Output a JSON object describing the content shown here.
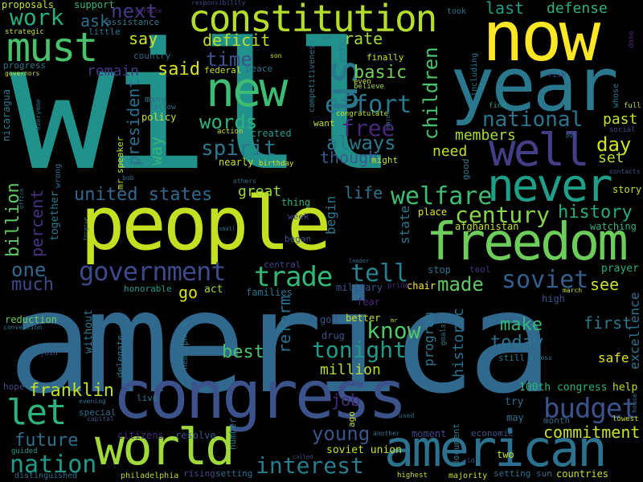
{
  "colors": {
    "background": "#000000",
    "palette": [
      "#440154",
      "#46327e",
      "#365c8d",
      "#277f8e",
      "#1fa187",
      "#4ac16d",
      "#a0da39",
      "#fde725"
    ]
  },
  "words": [
    {
      "text": "will",
      "color": "#21918c"
    },
    {
      "text": "america",
      "color": "#31688e"
    },
    {
      "text": "people",
      "color": "#c5e021"
    },
    {
      "text": "now",
      "color": "#fde725"
    },
    {
      "text": "year",
      "color": "#2a788e"
    },
    {
      "text": "congress",
      "color": "#3b528b"
    },
    {
      "text": "constitution",
      "color": "#b5de2b"
    },
    {
      "text": "freedom",
      "color": "#6ccd5a"
    },
    {
      "text": "world",
      "color": "#a0da39"
    },
    {
      "text": "american",
      "color": "#2c728e"
    },
    {
      "text": "must",
      "color": "#4ac16d"
    },
    {
      "text": "new",
      "color": "#3dbc74"
    },
    {
      "text": "well",
      "color": "#433e85"
    },
    {
      "text": "never",
      "color": "#1f9e89"
    },
    {
      "text": "us",
      "color": "#2a788e"
    },
    {
      "text": "government",
      "color": "#3e4989"
    },
    {
      "text": "let",
      "color": "#2db27d"
    },
    {
      "text": "trade",
      "color": "#35b779"
    },
    {
      "text": "tell",
      "color": "#26828e"
    },
    {
      "text": "soviet",
      "color": "#355f8d"
    },
    {
      "text": "nation",
      "color": "#1f9a8a"
    },
    {
      "text": "interest",
      "color": "#287c8e"
    },
    {
      "text": "budget",
      "color": "#3b528b"
    },
    {
      "text": "welfare",
      "color": "#3fbc73"
    },
    {
      "text": "century",
      "color": "#86d549"
    },
    {
      "text": "history",
      "color": "#23a983"
    },
    {
      "text": "united states",
      "color": "#31688e"
    },
    {
      "text": "effort",
      "color": "#2a788e"
    },
    {
      "text": "free",
      "color": "#482878"
    },
    {
      "text": "national",
      "color": "#2b748e"
    },
    {
      "text": "future",
      "color": "#2d708e"
    },
    {
      "text": "young",
      "color": "#39568c"
    },
    {
      "text": "commitment",
      "color": "#cae11f"
    },
    {
      "text": "tonight",
      "color": "#1f9a8a"
    },
    {
      "text": "know",
      "color": "#54c568"
    },
    {
      "text": "best",
      "color": "#4ac16d"
    },
    {
      "text": "million",
      "color": "#b8de29"
    },
    {
      "text": "made",
      "color": "#5ec962"
    },
    {
      "text": "make",
      "color": "#35b779"
    },
    {
      "text": "first",
      "color": "#2a788e"
    },
    {
      "text": "today",
      "color": "#2c728e"
    },
    {
      "text": "see",
      "color": "#cae11f"
    },
    {
      "text": "franklin",
      "color": "#bddf26"
    },
    {
      "text": "job",
      "color": "#472d7b"
    },
    {
      "text": "go",
      "color": "#d8e219"
    },
    {
      "text": "one",
      "color": "#31688e"
    },
    {
      "text": "much",
      "color": "#3e4989"
    },
    {
      "text": "work",
      "color": "#29af7f"
    },
    {
      "text": "next",
      "color": "#443983"
    },
    {
      "text": "say",
      "color": "#cae11f"
    },
    {
      "text": "time",
      "color": "#3b528b"
    },
    {
      "text": "said",
      "color": "#d8e219"
    },
    {
      "text": "words",
      "color": "#2db27d"
    },
    {
      "text": "spirit",
      "color": "#2a788e"
    },
    {
      "text": "always",
      "color": "#2a788e"
    },
    {
      "text": "though",
      "color": "#38598c"
    },
    {
      "text": "basic",
      "color": "#70cf57"
    },
    {
      "text": "rate",
      "color": "#a0da39"
    },
    {
      "text": "deficit",
      "color": "#bddf26"
    },
    {
      "text": "last",
      "color": "#1f9e89"
    },
    {
      "text": "defense",
      "color": "#2db27d"
    },
    {
      "text": "day",
      "color": "#d2e21b"
    },
    {
      "text": "past",
      "color": "#c5e021"
    },
    {
      "text": "set",
      "color": "#b5de2b"
    },
    {
      "text": "need",
      "color": "#c2df23"
    },
    {
      "text": "members",
      "color": "#a8db34"
    },
    {
      "text": "great",
      "color": "#98d83e"
    },
    {
      "text": "life",
      "color": "#2c728e"
    },
    {
      "text": "percent",
      "color": "#46327e"
    },
    {
      "text": "billion",
      "color": "#5ec962"
    },
    {
      "text": "ask",
      "color": "#2e6f8e"
    },
    {
      "text": "remain",
      "color": "#453781"
    },
    {
      "text": "support",
      "color": "#35b779"
    },
    {
      "text": "proposals",
      "color": "#c5e021"
    },
    {
      "text": "excellence",
      "color": "#2c728e"
    },
    {
      "text": "100th congress",
      "color": "#2db27d"
    },
    {
      "text": "help",
      "color": "#c2df23"
    },
    {
      "text": "safe",
      "color": "#dde318"
    },
    {
      "text": "soviet union",
      "color": "#c5e021"
    },
    {
      "text": "rising",
      "color": "#3e4989"
    },
    {
      "text": "setting",
      "color": "#2c728e"
    },
    {
      "text": "setting sun",
      "color": "#2c728e"
    },
    {
      "text": "countries",
      "color": "#c5e021"
    },
    {
      "text": "citizens",
      "color": "#472d7b"
    },
    {
      "text": "resolve",
      "color": "#38598c"
    },
    {
      "text": "moment",
      "color": "#3e4989"
    },
    {
      "text": "economic",
      "color": "#3b528b"
    },
    {
      "text": "two",
      "color": "#cae11f"
    },
    {
      "text": "may",
      "color": "#2c728e"
    },
    {
      "text": "month",
      "color": "#31688e"
    },
    {
      "text": "lowest",
      "color": "#c5e021"
    },
    {
      "text": "try",
      "color": "#31688e"
    },
    {
      "text": "chair",
      "color": "#fde725"
    },
    {
      "text": "pride",
      "color": "#482878"
    },
    {
      "text": "place",
      "color": "#e5e419"
    },
    {
      "text": "afghanistan",
      "color": "#c5e021"
    },
    {
      "text": "watching",
      "color": "#2db27d"
    },
    {
      "text": "prayer",
      "color": "#27ad81"
    },
    {
      "text": "story",
      "color": "#c5e021"
    },
    {
      "text": "contacts",
      "color": "#3b528b"
    },
    {
      "text": "social",
      "color": "#3e4989"
    },
    {
      "text": "high",
      "color": "#3b528b"
    },
    {
      "text": "stop",
      "color": "#2c728e"
    },
    {
      "text": "tool",
      "color": "#46327e"
    },
    {
      "text": "military",
      "color": "#3b528b"
    },
    {
      "text": "fear",
      "color": "#482878"
    },
    {
      "text": "better",
      "color": "#c5e021"
    },
    {
      "text": "god",
      "color": "#39568c"
    },
    {
      "text": "drug",
      "color": "#3b528b"
    },
    {
      "text": "act",
      "color": "#a0da39"
    },
    {
      "text": "families",
      "color": "#2d708e"
    },
    {
      "text": "honorable",
      "color": "#1f9e89"
    },
    {
      "text": "central",
      "color": "#3e4989"
    },
    {
      "text": "week",
      "color": "#3e4989"
    },
    {
      "text": "thing",
      "color": "#2db27d"
    },
    {
      "text": "began",
      "color": "#3b528b"
    },
    {
      "text": "reduction",
      "color": "#6ccd5a"
    },
    {
      "text": "convention",
      "color": "#2a788e"
    },
    {
      "text": "join",
      "color": "#3b528b"
    },
    {
      "text": "hope",
      "color": "#3e4989"
    },
    {
      "text": "guided",
      "color": "#1f9a8a"
    },
    {
      "text": "distinguished",
      "color": "#2d708e"
    },
    {
      "text": "philadelphia",
      "color": "#b5de2b"
    },
    {
      "text": "highest",
      "color": "#c5e021"
    },
    {
      "text": "majority",
      "color": "#c5e021"
    },
    {
      "text": "created",
      "color": "#1f9a8a"
    },
    {
      "text": "nearly",
      "color": "#c5e021"
    },
    {
      "text": "birthday",
      "color": "#d8e219"
    },
    {
      "text": "might",
      "color": "#c5e021"
    },
    {
      "text": "want",
      "color": "#c5e021"
    },
    {
      "text": "congratulate",
      "color": "#c5e021"
    },
    {
      "text": "believe",
      "color": "#a0da39"
    },
    {
      "text": "even",
      "color": "#c5e021"
    },
    {
      "text": "finally",
      "color": "#c5e021"
    },
    {
      "text": "including",
      "color": "#2a788e"
    },
    {
      "text": "risk",
      "color": "#3e4989"
    },
    {
      "text": "find",
      "color": "#1f9e89"
    },
    {
      "text": "full",
      "color": "#b5de2b"
    },
    {
      "text": "whose",
      "color": "#2a788e"
    },
    {
      "text": "done",
      "color": "#482878"
    },
    {
      "text": "took",
      "color": "#2a788e"
    },
    {
      "text": "service",
      "color": "#482878"
    },
    {
      "text": "responsibility",
      "color": "#3e4989"
    },
    {
      "text": "assistance",
      "color": "#2a788e"
    },
    {
      "text": "little",
      "color": "#2a788e"
    },
    {
      "text": "strategic",
      "color": "#c5e021"
    },
    {
      "text": "country",
      "color": "#2d708e"
    },
    {
      "text": "governors",
      "color": "#c5e021"
    },
    {
      "text": "progress",
      "color": "#2a788e"
    },
    {
      "text": "federal",
      "color": "#c5e021"
    },
    {
      "text": "peace",
      "color": "#2d708e"
    },
    {
      "text": "many",
      "color": "#2d708e"
    },
    {
      "text": "fellow",
      "color": "#2d708e"
    },
    {
      "text": "policy",
      "color": "#c5e021"
    },
    {
      "text": "action",
      "color": "#c5e021"
    },
    {
      "text": "children",
      "color": "#4ac16d"
    },
    {
      "text": "president",
      "color": "#2c728e"
    },
    {
      "text": "way",
      "color": "#35b779"
    },
    {
      "text": "mr speaker",
      "color": "#c5e021"
    },
    {
      "text": "bob",
      "color": "#2d708e"
    },
    {
      "text": "others",
      "color": "#2d708e"
    },
    {
      "text": "together",
      "color": "#2a788e"
    },
    {
      "text": "wrong",
      "color": "#2d708e"
    },
    {
      "text": "nicaragua",
      "color": "#2a788e"
    },
    {
      "text": "everyone",
      "color": "#2a788e"
    },
    {
      "text": "program",
      "color": "#2a788e"
    },
    {
      "text": "historic",
      "color": "#2c728e"
    },
    {
      "text": "reform",
      "color": "#2c728e"
    },
    {
      "text": "without",
      "color": "#2a788e"
    },
    {
      "text": "delegate",
      "color": "#2a788e"
    },
    {
      "text": "hemisphere",
      "color": "#2a788e"
    },
    {
      "text": "competitiveness",
      "color": "#2a788e"
    },
    {
      "text": "safer",
      "color": "#2a788e"
    },
    {
      "text": "begin",
      "color": "#2a788e"
    },
    {
      "text": "state",
      "color": "#2a788e"
    },
    {
      "text": "son",
      "color": "#c5e021"
    },
    {
      "text": "sam",
      "color": "#2d708e"
    },
    {
      "text": "good",
      "color": "#2a788e"
    },
    {
      "text": "document",
      "color": "#2a788e"
    },
    {
      "text": "goals",
      "color": "#2a788e"
    },
    {
      "text": "ago",
      "color": "#c5e021"
    },
    {
      "text": "number",
      "color": "#2a788e"
    },
    {
      "text": "special",
      "color": "#2d708e"
    },
    {
      "text": "capital",
      "color": "#3b528b"
    },
    {
      "text": "evening",
      "color": "#2d708e"
    },
    {
      "text": "live",
      "color": "#2a788e"
    },
    {
      "text": "another",
      "color": "#2d708e"
    },
    {
      "text": "used",
      "color": "#2d708e"
    },
    {
      "text": "old",
      "color": "#3b528b"
    },
    {
      "text": "across",
      "color": "#2a788e"
    },
    {
      "text": "still",
      "color": "#2a788e"
    },
    {
      "text": "march",
      "color": "#c5e021"
    },
    {
      "text": "house",
      "color": "#2d708e"
    },
    {
      "text": "called",
      "color": "#3b528b"
    },
    {
      "text": "leader",
      "color": "#2d708e"
    },
    {
      "text": "small",
      "color": "#2d708e"
    },
    {
      "text": "forgive",
      "color": "#2d708e"
    },
    {
      "text": "office",
      "color": "#2d708e"
    },
    {
      "text": "put",
      "color": "#2d708e"
    },
    {
      "text": "major",
      "color": "#2d708e"
    },
    {
      "text": "mr",
      "color": "#c5e021"
    }
  ]
}
